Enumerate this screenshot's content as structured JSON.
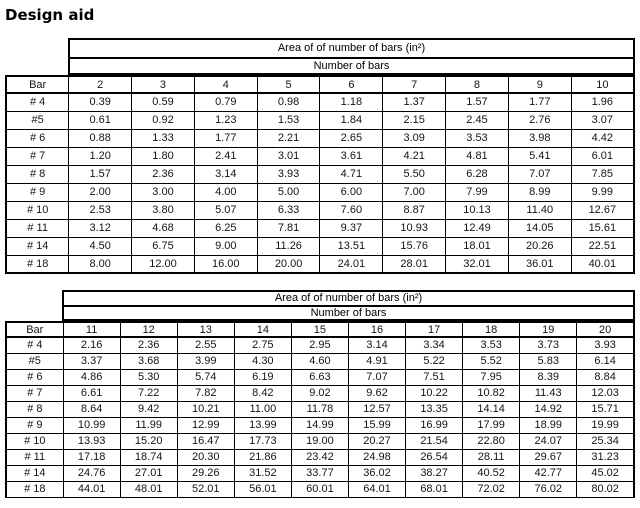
{
  "page": {
    "title": "Design aid"
  },
  "tables": [
    {
      "header": "Area of of number of bars (in²)",
      "subheader": "Number of bars",
      "bar_col_label": "Bar",
      "columns": [
        "2",
        "3",
        "4",
        "5",
        "6",
        "7",
        "8",
        "9",
        "10"
      ],
      "rows": [
        {
          "bar": "# 4",
          "values": [
            "0.39",
            "0.59",
            "0.79",
            "0.98",
            "1.18",
            "1.37",
            "1.57",
            "1.77",
            "1.96"
          ]
        },
        {
          "bar": "#5",
          "values": [
            "0.61",
            "0.92",
            "1.23",
            "1.53",
            "1.84",
            "2.15",
            "2.45",
            "2.76",
            "3.07"
          ]
        },
        {
          "bar": "# 6",
          "values": [
            "0.88",
            "1.33",
            "1.77",
            "2.21",
            "2.65",
            "3.09",
            "3.53",
            "3.98",
            "4.42"
          ]
        },
        {
          "bar": "# 7",
          "values": [
            "1.20",
            "1.80",
            "2.41",
            "3.01",
            "3.61",
            "4.21",
            "4.81",
            "5.41",
            "6.01"
          ]
        },
        {
          "bar": "# 8",
          "values": [
            "1.57",
            "2.36",
            "3.14",
            "3.93",
            "4.71",
            "5.50",
            "6.28",
            "7.07",
            "7.85"
          ]
        },
        {
          "bar": "# 9",
          "values": [
            "2.00",
            "3.00",
            "4.00",
            "5.00",
            "6.00",
            "7.00",
            "7.99",
            "8.99",
            "9.99"
          ]
        },
        {
          "bar": "# 10",
          "values": [
            "2.53",
            "3.80",
            "5.07",
            "6.33",
            "7.60",
            "8.87",
            "10.13",
            "11.40",
            "12.67"
          ]
        },
        {
          "bar": "# 11",
          "values": [
            "3.12",
            "4.68",
            "6.25",
            "7.81",
            "9.37",
            "10.93",
            "12.49",
            "14.05",
            "15.61"
          ]
        },
        {
          "bar": "# 14",
          "values": [
            "4.50",
            "6.75",
            "9.00",
            "11.26",
            "13.51",
            "15.76",
            "18.01",
            "20.26",
            "22.51"
          ]
        },
        {
          "bar": "# 18",
          "values": [
            "8.00",
            "12.00",
            "16.00",
            "20.00",
            "24.01",
            "28.01",
            "32.01",
            "36.01",
            "40.01"
          ]
        }
      ]
    },
    {
      "header": "Area of of number of bars (in²)",
      "subheader": "Number of bars",
      "bar_col_label": "Bar",
      "columns": [
        "11",
        "12",
        "13",
        "14",
        "15",
        "16",
        "17",
        "18",
        "19",
        "20"
      ],
      "rows": [
        {
          "bar": "# 4",
          "values": [
            "2.16",
            "2.36",
            "2.55",
            "2.75",
            "2.95",
            "3.14",
            "3.34",
            "3.53",
            "3.73",
            "3.93"
          ]
        },
        {
          "bar": "#5",
          "values": [
            "3.37",
            "3.68",
            "3.99",
            "4.30",
            "4.60",
            "4.91",
            "5.22",
            "5.52",
            "5.83",
            "6.14"
          ]
        },
        {
          "bar": "# 6",
          "values": [
            "4.86",
            "5.30",
            "5.74",
            "6.19",
            "6.63",
            "7.07",
            "7.51",
            "7.95",
            "8.39",
            "8.84"
          ]
        },
        {
          "bar": "# 7",
          "values": [
            "6.61",
            "7.22",
            "7.82",
            "8.42",
            "9.02",
            "9.62",
            "10.22",
            "10.82",
            "11.43",
            "12.03"
          ]
        },
        {
          "bar": "# 8",
          "values": [
            "8.64",
            "9.42",
            "10.21",
            "11.00",
            "11.78",
            "12.57",
            "13.35",
            "14.14",
            "14.92",
            "15.71"
          ]
        },
        {
          "bar": "# 9",
          "values": [
            "10.99",
            "11.99",
            "12.99",
            "13.99",
            "14.99",
            "15.99",
            "16.99",
            "17.99",
            "18.99",
            "19.99"
          ]
        },
        {
          "bar": "# 10",
          "values": [
            "13.93",
            "15.20",
            "16.47",
            "17.73",
            "19.00",
            "20.27",
            "21.54",
            "22.80",
            "24.07",
            "25.34"
          ]
        },
        {
          "bar": "# 11",
          "values": [
            "17.18",
            "18.74",
            "20.30",
            "21.86",
            "23.42",
            "24.98",
            "26.54",
            "28.11",
            "29.67",
            "31.23"
          ]
        },
        {
          "bar": "# 14",
          "values": [
            "24.76",
            "27.01",
            "29.26",
            "31.52",
            "33.77",
            "36.02",
            "38.27",
            "40.52",
            "42.77",
            "45.02"
          ]
        },
        {
          "bar": "# 18",
          "values": [
            "44.01",
            "48.01",
            "52.01",
            "56.01",
            "60.01",
            "64.01",
            "68.01",
            "72.02",
            "76.02",
            "80.02"
          ]
        }
      ]
    }
  ],
  "colors": {
    "border_strong": "#000000",
    "border_light": "#b8b8b8",
    "text": "#141414",
    "background": "#ffffff"
  }
}
